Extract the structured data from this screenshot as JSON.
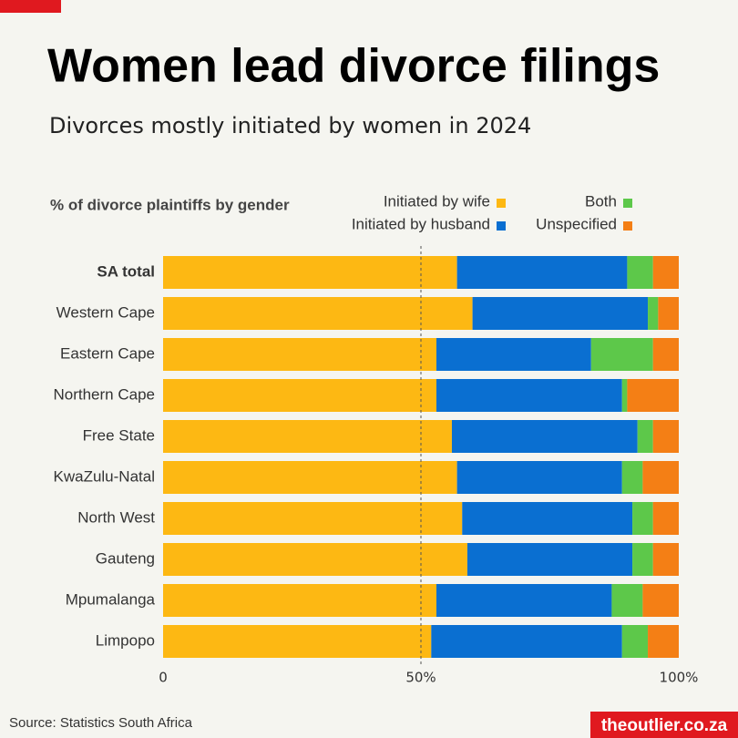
{
  "chart_data": {
    "type": "stacked-bar-horizontal",
    "title": "Women lead divorce filings",
    "subtitle": "Divorces mostly initiated by women in 2024",
    "axis_label": "% of divorce plaintiffs by gender",
    "source": "Source: Statistics South Africa",
    "brand": "theoutlier.co.za",
    "categories": [
      "SA total",
      "Western Cape",
      "Eastern Cape",
      "Northern Cape",
      "Free State",
      "KwaZulu-Natal",
      "North West",
      "Gauteng",
      "Mpumalanga",
      "Limpopo"
    ],
    "series": [
      {
        "name": "Initiated by wife",
        "color": "#fdb813",
        "values": [
          57,
          60,
          53,
          53,
          56,
          57,
          58,
          59,
          53,
          52
        ]
      },
      {
        "name": "Initiated by husband",
        "color": "#0a6fd1",
        "values": [
          33,
          34,
          30,
          36,
          36,
          32,
          33,
          32,
          34,
          37
        ]
      },
      {
        "name": "Both",
        "color": "#5dc84a",
        "values": [
          5,
          2,
          12,
          1,
          3,
          4,
          4,
          4,
          6,
          5
        ]
      },
      {
        "name": "Unspecified",
        "color": "#f47f15",
        "values": [
          5,
          4,
          5,
          10,
          5,
          7,
          5,
          5,
          7,
          6
        ]
      }
    ],
    "xlim": [
      0,
      100
    ],
    "xticks": [
      0,
      {
        "value": 50,
        "label": "50%"
      },
      {
        "value": 100,
        "label": "100%"
      }
    ],
    "grid": true
  }
}
